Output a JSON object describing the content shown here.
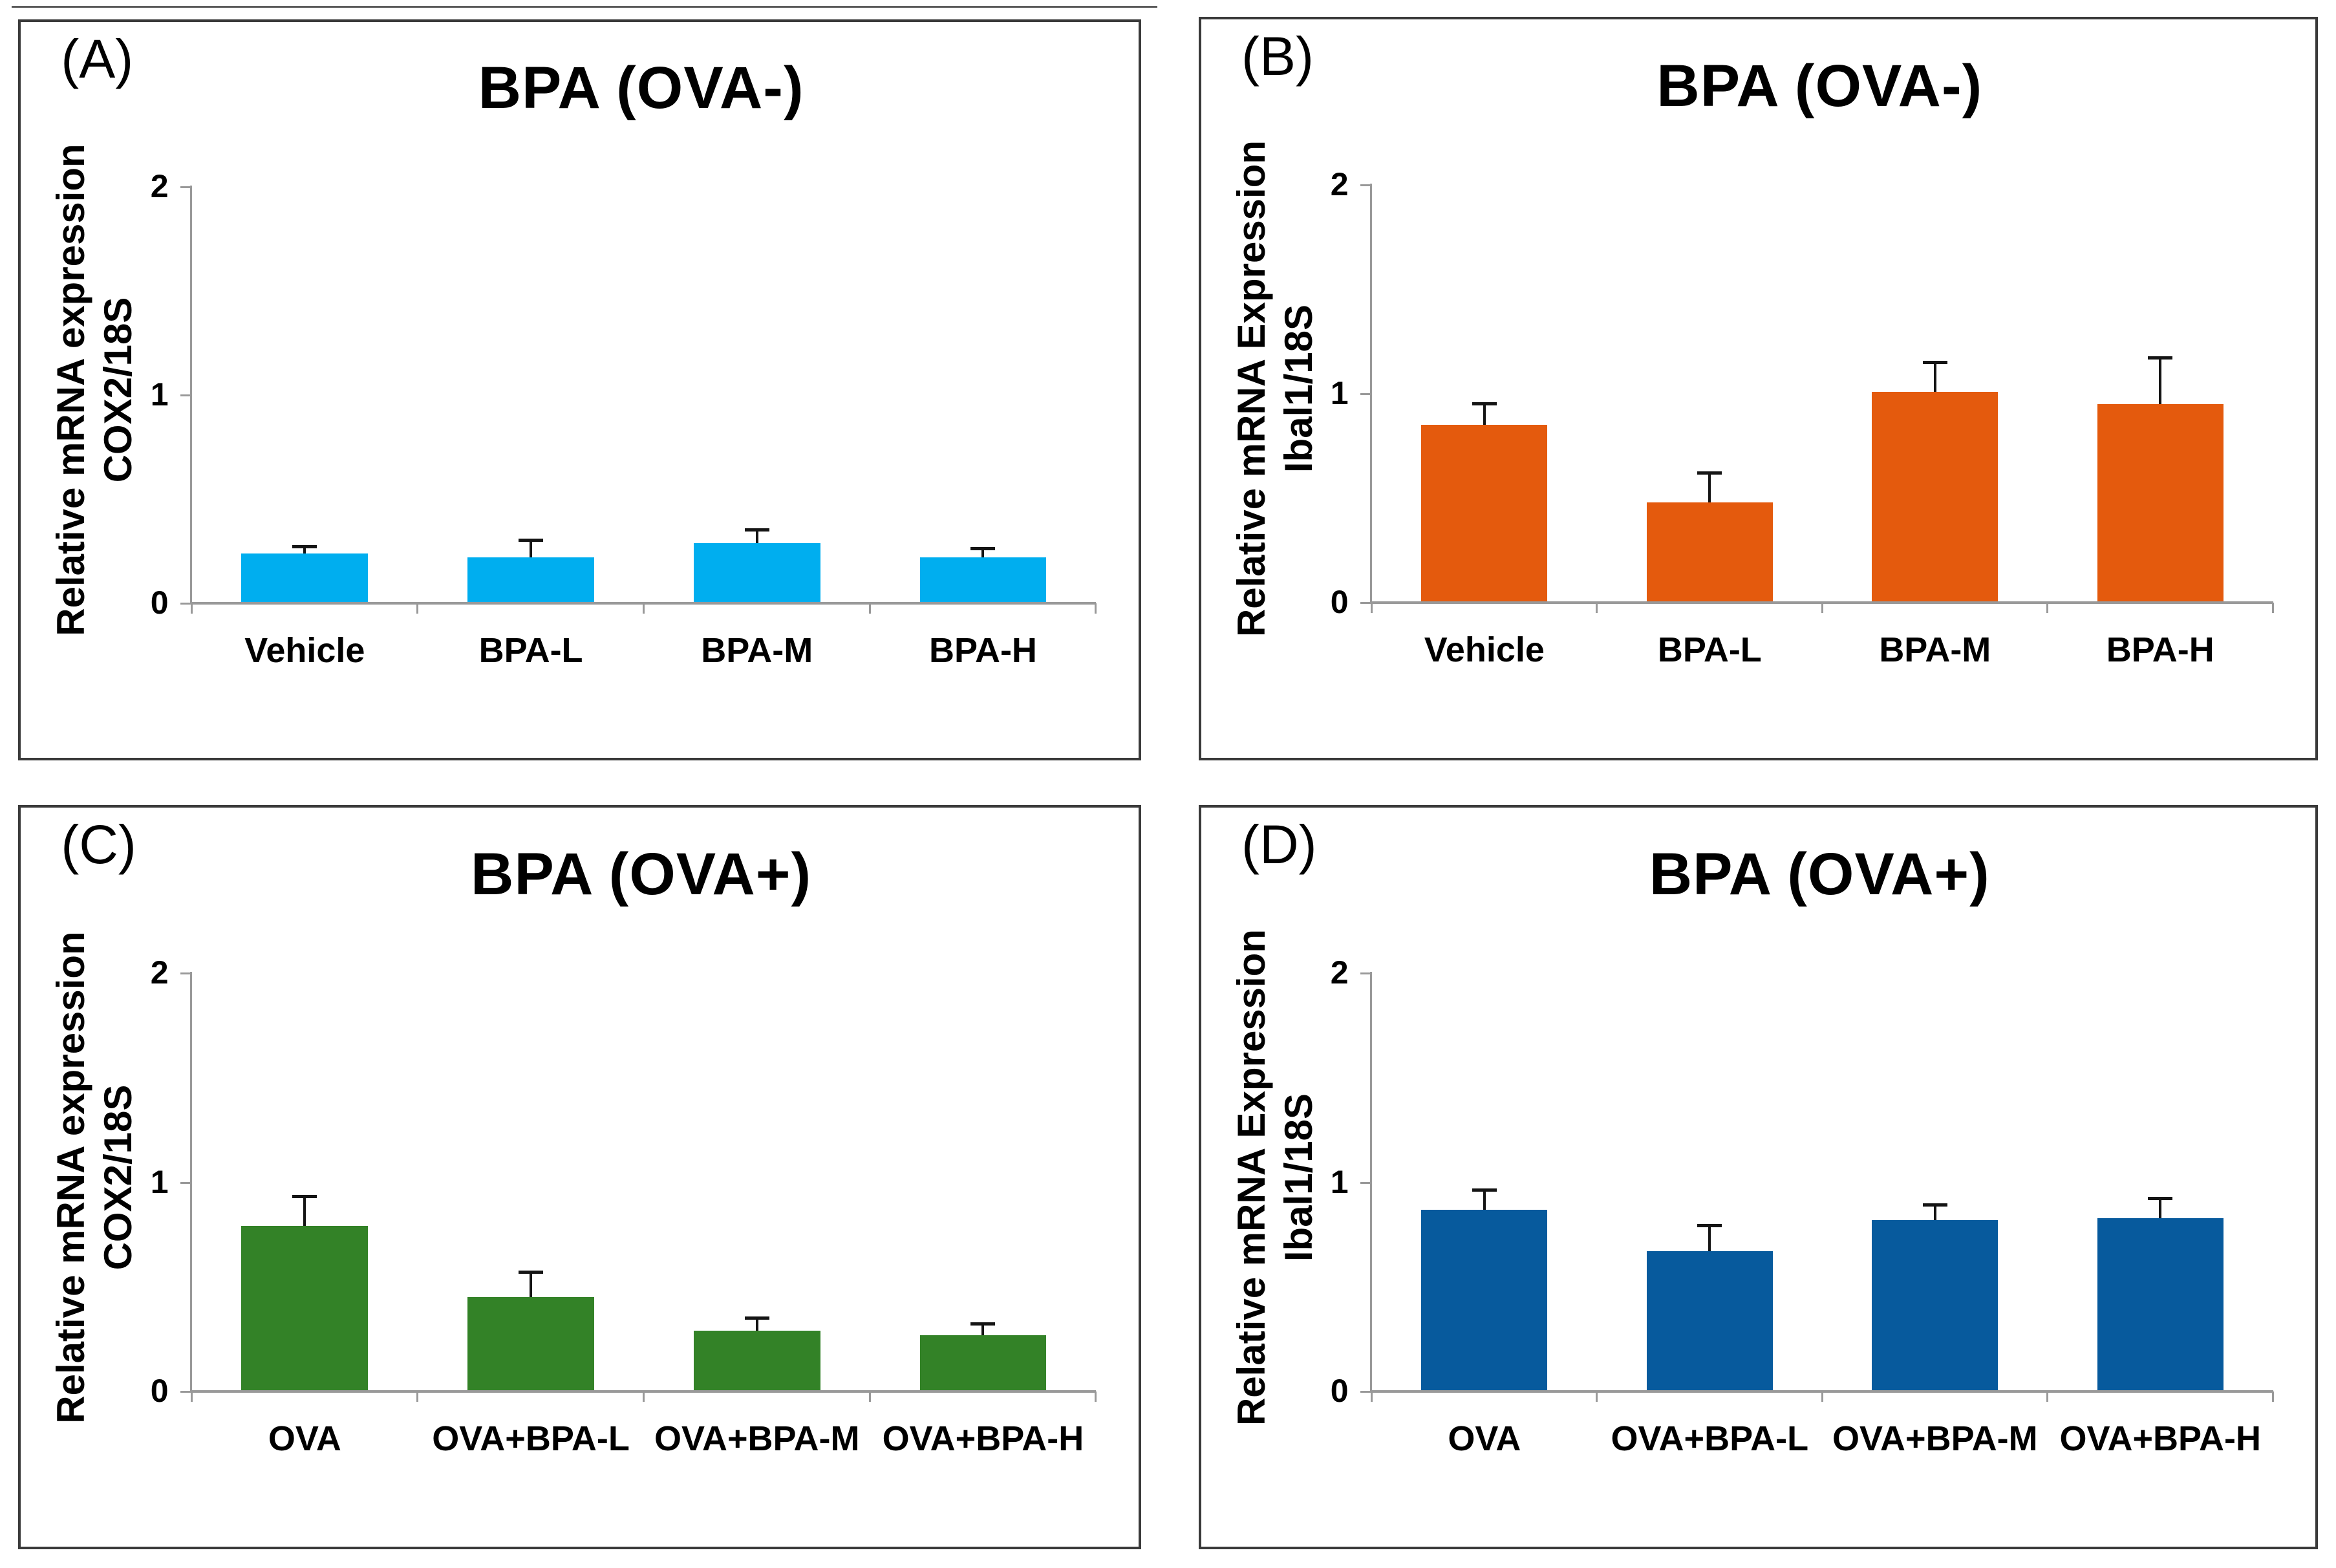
{
  "figure": {
    "colors": {
      "axis": "#999999",
      "error_bar": "#141414",
      "panel_border": "#3a3a3a",
      "background": "#ffffff"
    }
  },
  "chart_data": [
    {
      "type": "bar",
      "panel_letter": "(A)",
      "title": "BPA (OVA-)",
      "ylabel": "Relative mRNA expression COX2/18S",
      "ylabel_line1": "Relative mRNA expression",
      "ylabel_line2": "COX2/18S",
      "xlabel": "",
      "categories": [
        "Vehicle",
        "BPA-L",
        "BPA-M",
        "BPA-H"
      ],
      "values": [
        0.24,
        0.22,
        0.29,
        0.22
      ],
      "errors": [
        0.03,
        0.08,
        0.06,
        0.04
      ],
      "ylim": [
        0,
        2
      ],
      "yticks": [
        0,
        1,
        2
      ],
      "bar_color": "#00AEEF",
      "grid": false,
      "legend": false
    },
    {
      "type": "bar",
      "panel_letter": "(B)",
      "title": "BPA (OVA-)",
      "ylabel": "Relative mRNA Expression Ibal1/18S",
      "ylabel_line1": "Relative mRNA Expression",
      "ylabel_line2": "Ibal1/18S",
      "xlabel": "",
      "categories": [
        "Vehicle",
        "BPA-L",
        "BPA-M",
        "BPA-H"
      ],
      "values": [
        0.85,
        0.48,
        1.01,
        0.95
      ],
      "errors": [
        0.1,
        0.14,
        0.14,
        0.22
      ],
      "ylim": [
        0,
        2
      ],
      "yticks": [
        0,
        1,
        2
      ],
      "bar_color": "#E45A0D",
      "grid": false,
      "legend": false
    },
    {
      "type": "bar",
      "panel_letter": "(C)",
      "title": "BPA (OVA+)",
      "ylabel": "Relative mRNA expression COX2/18S",
      "ylabel_line1": "Relative mRNA expression",
      "ylabel_line2": "COX2/18S",
      "xlabel": "",
      "categories": [
        "OVA",
        "OVA+BPA-L",
        "OVA+BPA-M",
        "OVA+BPA-H"
      ],
      "values": [
        0.79,
        0.45,
        0.29,
        0.27
      ],
      "errors": [
        0.14,
        0.12,
        0.06,
        0.05
      ],
      "ylim": [
        0,
        2
      ],
      "yticks": [
        0,
        1,
        2
      ],
      "bar_color": "#338227",
      "grid": false,
      "legend": false
    },
    {
      "type": "bar",
      "panel_letter": "(D)",
      "title": "BPA (OVA+)",
      "ylabel": "Relative mRNA Expression Ibal1/18S",
      "ylabel_line1": "Relative mRNA Expression",
      "ylabel_line2": "Ibal1/18S",
      "xlabel": "",
      "categories": [
        "OVA",
        "OVA+BPA-L",
        "OVA+BPA-M",
        "OVA+BPA-H"
      ],
      "values": [
        0.87,
        0.67,
        0.82,
        0.83
      ],
      "errors": [
        0.09,
        0.12,
        0.07,
        0.09
      ],
      "ylim": [
        0,
        2
      ],
      "yticks": [
        0,
        1,
        2
      ],
      "bar_color": "#075A9D",
      "grid": false,
      "legend": false
    }
  ]
}
